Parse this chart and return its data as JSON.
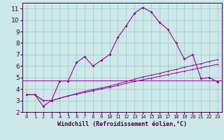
{
  "x": [
    0,
    1,
    2,
    3,
    4,
    5,
    6,
    7,
    8,
    9,
    10,
    11,
    12,
    13,
    14,
    15,
    16,
    17,
    18,
    19,
    20,
    21,
    22,
    23
  ],
  "line1": [
    3.5,
    3.5,
    2.5,
    3.0,
    4.7,
    4.7,
    6.3,
    6.8,
    6.0,
    6.5,
    7.0,
    8.5,
    9.5,
    10.6,
    11.1,
    10.7,
    9.8,
    9.2,
    8.0,
    6.6,
    7.0,
    4.9,
    5.0,
    4.6
  ],
  "line2": [
    3.5,
    3.5,
    3.0,
    3.0,
    3.2,
    3.4,
    3.55,
    3.7,
    3.85,
    4.0,
    4.15,
    4.3,
    4.5,
    4.65,
    4.8,
    4.95,
    5.1,
    5.25,
    5.4,
    5.55,
    5.7,
    5.85,
    6.0,
    6.15
  ],
  "line3": [
    3.5,
    3.5,
    3.0,
    3.0,
    3.2,
    3.4,
    3.6,
    3.8,
    3.95,
    4.1,
    4.25,
    4.45,
    4.65,
    4.85,
    5.05,
    5.2,
    5.35,
    5.55,
    5.7,
    5.9,
    6.05,
    6.2,
    6.4,
    6.55
  ],
  "hline_y": 4.75,
  "color": "#990099",
  "bg_color": "#cce8e8",
  "grid_color": "#aacccc",
  "xlabel": "Windchill (Refroidissement éolien,°C)",
  "ylim": [
    2,
    11.5
  ],
  "xlim": [
    -0.5,
    23.5
  ],
  "yticks": [
    2,
    3,
    4,
    5,
    6,
    7,
    8,
    9,
    10,
    11
  ],
  "xticks": [
    0,
    1,
    2,
    3,
    4,
    5,
    6,
    7,
    8,
    9,
    10,
    11,
    12,
    13,
    14,
    15,
    16,
    17,
    18,
    19,
    20,
    21,
    22,
    23
  ],
  "xlabel_fontsize": 6.0,
  "tick_fontsize_x": 5.0,
  "tick_fontsize_y": 6.5
}
